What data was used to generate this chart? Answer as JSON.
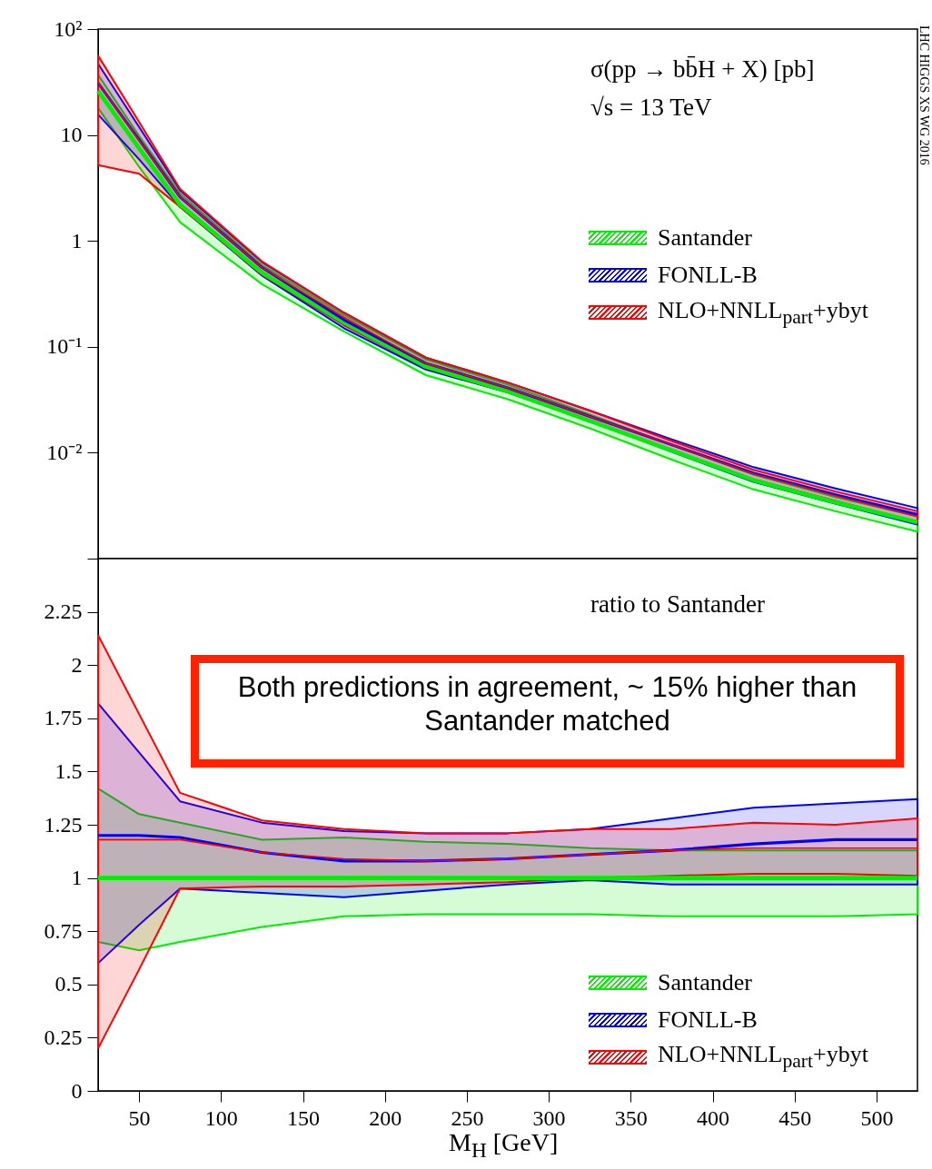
{
  "chart_data": [
    {
      "type": "line",
      "x": [
        25,
        50,
        75,
        125,
        175,
        225,
        275,
        325,
        375,
        425,
        475,
        525
      ],
      "xlim": [
        25,
        525
      ],
      "xticks": [
        50,
        100,
        150,
        200,
        250,
        300,
        350,
        400,
        450,
        500
      ],
      "log": true,
      "ylim": [
        0.001,
        100
      ],
      "yticks": [
        {
          "value": 100,
          "label": "10²"
        },
        10,
        1,
        {
          "value": 0.1,
          "label": "10⁻¹"
        },
        {
          "value": 0.01,
          "label": "10⁻²"
        }
      ],
      "tick_labels": "y",
      "grid": false,
      "legend": "right",
      "line_style": "solid",
      "annotations": [
        "σ(pp → bb̄H + X) [pb]",
        "√s = 13 TeV",
        "LHC HIGGS XS WG 2016"
      ],
      "series": [
        {
          "name": "Santander",
          "color": "#00ee00",
          "values": [
            26,
            7.5,
            2.2,
            0.5,
            0.17,
            0.065,
            0.038,
            0.02,
            0.0105,
            0.0055,
            0.0034,
            0.0022
          ],
          "lower": [
            18,
            5,
            1.5,
            0.39,
            0.14,
            0.054,
            0.032,
            0.017,
            0.0086,
            0.0045,
            0.0028,
            0.0018
          ],
          "upper": [
            37,
            9.8,
            2.8,
            0.59,
            0.2,
            0.076,
            0.044,
            0.023,
            0.0119,
            0.0062,
            0.0038,
            0.0025
          ]
        },
        {
          "name": "FONLL-B",
          "color": "#0000ff",
          "values": [
            31,
            9,
            2.6,
            0.56,
            0.18,
            0.07,
            0.041,
            0.022,
            0.0119,
            0.0064,
            0.004,
            0.0026
          ],
          "lower": [
            15.6,
            5.9,
            2.1,
            0.47,
            0.15,
            0.061,
            0.037,
            0.02,
            0.0102,
            0.0053,
            0.0033,
            0.0021
          ],
          "upper": [
            47,
            11.9,
            3,
            0.63,
            0.21,
            0.079,
            0.046,
            0.025,
            0.0134,
            0.0073,
            0.0046,
            0.003
          ]
        },
        {
          "name": "NLO+NNLL$_{part}$+ybyt",
          "color": "#ff0000",
          "values": [
            31,
            8.9,
            2.6,
            0.56,
            0.19,
            0.07,
            0.041,
            0.022,
            0.0119,
            0.0063,
            0.0039,
            0.0025
          ],
          "lower": [
            5.2,
            4.3,
            2.1,
            0.48,
            0.16,
            0.063,
            0.037,
            0.02,
            0.0106,
            0.0056,
            0.0035,
            0.0022
          ],
          "upper": [
            56,
            13.3,
            3.1,
            0.64,
            0.21,
            0.079,
            0.046,
            0.025,
            0.0129,
            0.0069,
            0.0043,
            0.0028
          ]
        }
      ]
    },
    {
      "type": "line",
      "x": [
        25,
        50,
        75,
        125,
        175,
        225,
        275,
        325,
        375,
        425,
        475,
        525
      ],
      "xlim": [
        25,
        525
      ],
      "xticks": [
        50,
        100,
        150,
        200,
        250,
        300,
        350,
        400,
        450,
        500
      ],
      "ylim": [
        0,
        2.5
      ],
      "yticks": [
        0,
        0.25,
        0.5,
        0.75,
        1,
        1.25,
        1.5,
        1.75,
        2,
        2.25,
        {
          "value": 2.5,
          "label": null
        }
      ],
      "xlabel": "M$_{H}$ [GeV]",
      "grid": false,
      "legend": "bottom right",
      "line_style": "solid",
      "annotations": [
        "ratio to Santander",
        "Both predictions in agreement, ~ 15% higher than Santander matched"
      ],
      "series": [
        {
          "name": "Santander",
          "color": "#00ee00",
          "values": [
            1,
            1,
            1,
            1,
            1,
            1,
            1,
            1,
            1,
            1,
            1,
            1
          ],
          "lower": [
            0.7,
            0.66,
            0.7,
            0.77,
            0.82,
            0.83,
            0.83,
            0.83,
            0.82,
            0.82,
            0.82,
            0.83
          ],
          "upper": [
            1.42,
            1.3,
            1.26,
            1.18,
            1.19,
            1.17,
            1.16,
            1.14,
            1.13,
            1.13,
            1.13,
            1.13
          ]
        },
        {
          "name": "FONLL-B",
          "color": "#0000ff",
          "values": [
            1.2,
            1.2,
            1.19,
            1.12,
            1.08,
            1.08,
            1.09,
            1.11,
            1.13,
            1.16,
            1.18,
            1.18
          ],
          "lower": [
            0.6,
            0.78,
            0.95,
            0.93,
            0.91,
            0.94,
            0.97,
            0.99,
            0.97,
            0.97,
            0.97,
            0.97
          ],
          "upper": [
            1.82,
            1.59,
            1.36,
            1.26,
            1.22,
            1.21,
            1.21,
            1.23,
            1.28,
            1.33,
            1.35,
            1.37
          ]
        },
        {
          "name": "NLO+NNLL$_{part}$+ybyt",
          "color": "#ff0000",
          "values": [
            1.18,
            1.18,
            1.18,
            1.12,
            1.09,
            1.08,
            1.09,
            1.11,
            1.13,
            1.14,
            1.14,
            1.14
          ],
          "lower": [
            0.2,
            0.57,
            0.95,
            0.96,
            0.96,
            0.97,
            0.98,
            1,
            1.01,
            1.02,
            1.02,
            1.01
          ],
          "upper": [
            2.14,
            1.77,
            1.4,
            1.27,
            1.23,
            1.21,
            1.21,
            1.23,
            1.23,
            1.26,
            1.25,
            1.28
          ]
        }
      ]
    }
  ]
}
